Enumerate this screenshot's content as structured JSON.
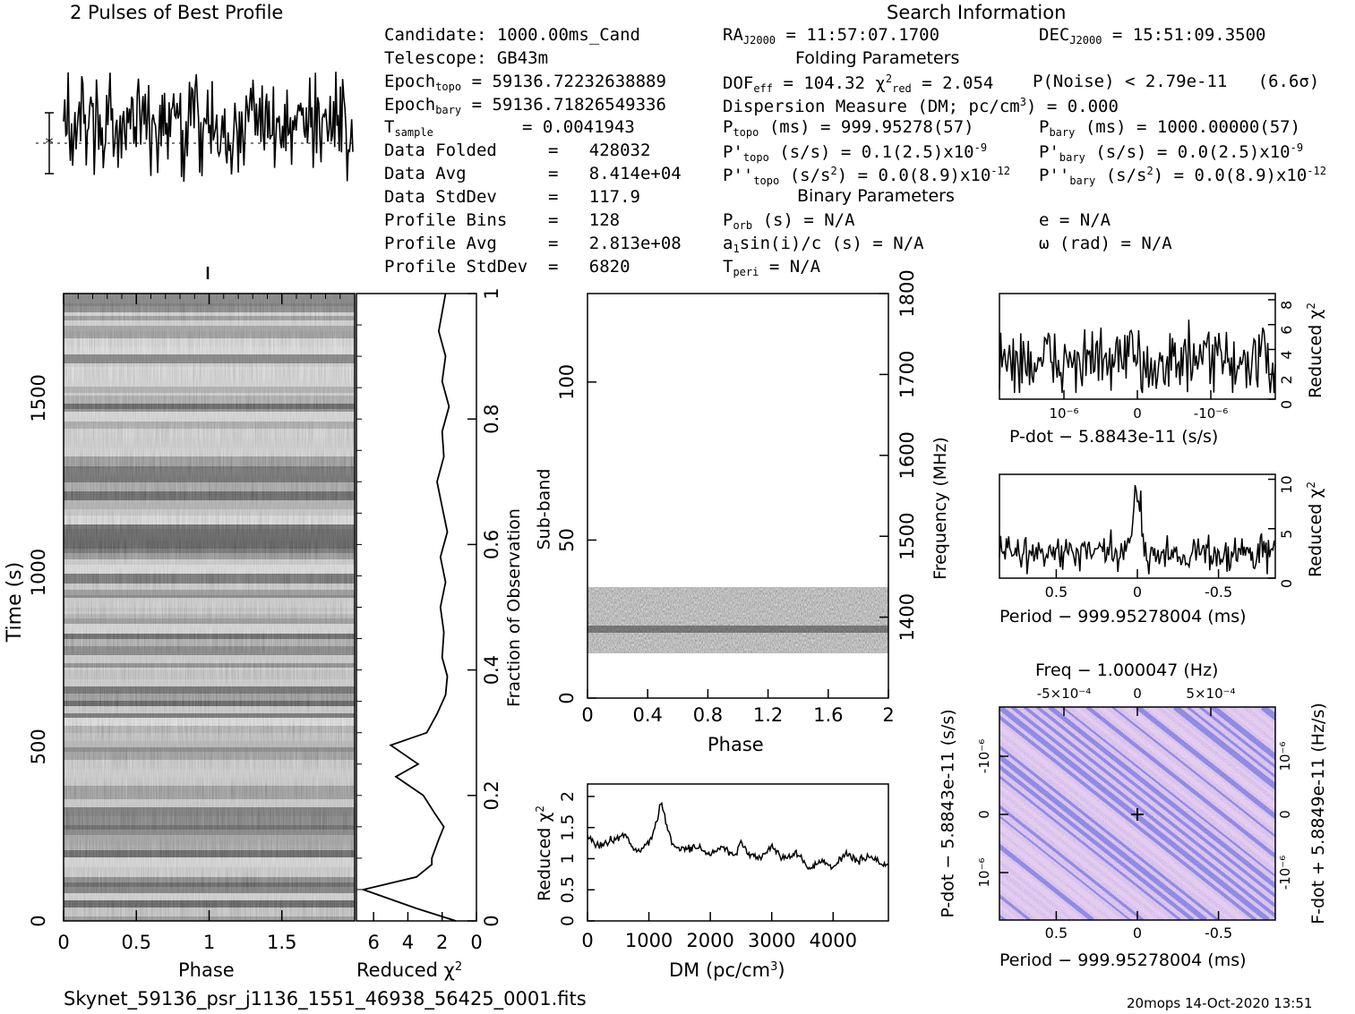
{
  "header": {
    "profile_title": "2 Pulses of Best Profile",
    "search_title": "Search Information",
    "folding_title": "Folding Parameters",
    "binary_title": "Binary Parameters"
  },
  "candidate_info": {
    "candidate": "Candidate:  1000.00ms_Cand",
    "telescope": "Telescope:  GB43m",
    "epoch_topo": "= 59136.72232638889",
    "epoch_bary": "= 59136.71826549336",
    "tsample": "=   0.0041943",
    "data_folded": "Data Folded     =   428032",
    "data_avg": "Data Avg        =   8.414e+04",
    "data_stddev": "Data StdDev     =   117.9",
    "profile_bins": "Profile Bins    =   128",
    "profile_avg": "Profile Avg     =   2.813e+08",
    "profile_stddev": "Profile StdDev  =   6820"
  },
  "search_info": {
    "ra": "= 11:57:07.1700",
    "dec": "= 15:51:09.3500",
    "dof": "= 104.32",
    "chi2red": "= 2.054",
    "pnoise": "P(Noise) < 2.79e-11   (6.6σ)",
    "dm": "Dispersion Measure (DM; pc/cm",
    "dm_value": ") = 0.000",
    "ptopo": "(ms) =  999.95278(57)",
    "pbary": "(ms) =  1000.00000(57)",
    "pdot_topo": "(s/s) =  0.1(2.5)x10",
    "pdot_bary": "(s/s) = 0.0(2.5)x10",
    "pddot_topo": "(s/s",
    "pddot_topo_val": ") = 0.0(8.9)x10",
    "pddot_bary_val": ") = 0.0(8.9)x10",
    "exp9": "-9",
    "exp12": "-12",
    "porb": "(s) = N/A",
    "a1sini": "sin(i)/c (s) = N/A",
    "tperi": "= N/A",
    "e": "e = N/A",
    "omega": "ω (rad) = N/A"
  },
  "axes": {
    "time_label": "Time (s)",
    "phase_label": "Phase",
    "redchi_label": "Reduced χ",
    "fraction_label": "Fraction of Observation",
    "subband_label": "Sub-band",
    "frequency_label": "Frequency (MHz)",
    "dm_label": "DM (pc/cm",
    "pdot_label": "P-dot − 5.8843e-11 (s/s)",
    "period_label": "Period − 999.95278004 (ms)",
    "freq_label": "Freq − 1.000047 (Hz)",
    "fdot_label": "F-dot + 5.8849e-11 (Hz/s)"
  },
  "footer": {
    "filename": "Skynet_59136_psr_j1136_1551_46938_56425_0001.fits",
    "stamp": "20mops 14-Oct-2020 13:51"
  },
  "chart_data": [
    {
      "type": "line",
      "title": "2 Pulses of Best Profile",
      "x_range": [
        0,
        2
      ],
      "note_values": "128 profile bins repeated twice, noisy profile"
    },
    {
      "type": "heatmap",
      "name": "time-phase",
      "xlabel": "Phase",
      "ylabel": "Time (s)",
      "xlim": [
        0,
        2
      ],
      "ylim": [
        0,
        1800
      ],
      "x_ticks": [
        0,
        0.5,
        1,
        1.5
      ],
      "y_ticks": [
        0,
        500,
        1000,
        1500
      ]
    },
    {
      "type": "line",
      "name": "reduced-chi2-vs-time",
      "xlabel": "Reduced χ2",
      "ylabel": "Fraction of Observation",
      "xlim": [
        7,
        0
      ],
      "ylim": [
        0,
        1
      ],
      "x_ticks": [
        6,
        4,
        2,
        0
      ],
      "y_ticks": [
        0,
        0.2,
        0.4,
        0.6,
        0.8,
        1
      ],
      "fraction": [
        0,
        0.02,
        0.05,
        0.07,
        0.09,
        0.1,
        0.13,
        0.15,
        0.17,
        0.2,
        0.23,
        0.25,
        0.28,
        0.3,
        0.33,
        0.36,
        0.39,
        0.42,
        0.46,
        0.5,
        0.54,
        0.58,
        0.62,
        0.66,
        0.7,
        0.74,
        0.78,
        0.82,
        0.86,
        0.9,
        0.94,
        0.97,
        1.0
      ],
      "redchi": [
        1.2,
        3.5,
        6.6,
        3.5,
        2.6,
        2.6,
        2.2,
        1.9,
        2.4,
        3.1,
        4.7,
        3.4,
        5.0,
        2.9,
        2.3,
        1.8,
        1.7,
        2.0,
        1.9,
        2.1,
        1.8,
        2.1,
        1.7,
        2.0,
        2.3,
        1.9,
        2.0,
        1.6,
        2.0,
        1.8,
        2.2,
        2.0,
        1.8
      ]
    },
    {
      "type": "heatmap",
      "name": "subband-phase",
      "xlabel": "Phase",
      "ylabel": "Sub-band",
      "y2label": "Frequency (MHz)",
      "xlim": [
        0,
        2
      ],
      "ylim": [
        0,
        128
      ],
      "y2lim": [
        1300,
        1800
      ],
      "x_ticks": [
        0,
        0.4,
        0.8,
        1.2,
        1.6,
        2
      ],
      "y_ticks": [
        0,
        50,
        100
      ],
      "y2_ticks": [
        1400,
        1500,
        1600,
        1700,
        1800
      ],
      "occupied_subbands": [
        14,
        35
      ]
    },
    {
      "type": "line",
      "name": "reduced-chi2-vs-dm",
      "xlabel": "DM (pc/cm3)",
      "ylabel": "Reduced χ2",
      "xlim": [
        0,
        4900
      ],
      "ylim": [
        0,
        2.2
      ],
      "x_ticks": [
        0,
        1000,
        2000,
        3000,
        4000
      ],
      "y_ticks": [
        0,
        0.5,
        1,
        1.5,
        2
      ],
      "x": [
        0,
        200,
        400,
        600,
        800,
        1000,
        1100,
        1200,
        1300,
        1400,
        1600,
        1800,
        2000,
        2200,
        2400,
        2500,
        2600,
        2800,
        3000,
        3200,
        3400,
        3600,
        3800,
        4000,
        4200,
        4400,
        4600,
        4800
      ],
      "y": [
        1.35,
        1.2,
        1.3,
        1.4,
        1.1,
        1.25,
        1.5,
        1.9,
        1.5,
        1.2,
        1.15,
        1.2,
        1.05,
        1.2,
        1.0,
        1.3,
        1.1,
        1.0,
        1.2,
        1.0,
        1.1,
        0.85,
        0.95,
        0.85,
        1.1,
        0.95,
        1.05,
        0.9
      ]
    },
    {
      "type": "line",
      "name": "pdot-search",
      "xlabel": "P-dot − 5.8843e-11 (s/s)",
      "ylabel": "Reduced χ2",
      "ylim": [
        0,
        8.5
      ],
      "y_ticks": [
        0,
        2,
        4,
        6,
        8
      ],
      "x_tick_labels": [
        "10-6",
        "0",
        "-10-6"
      ]
    },
    {
      "type": "line",
      "name": "period-search",
      "xlabel": "Period − 999.95278004 (ms)",
      "ylabel": "Reduced χ2",
      "xlim": [
        0.85,
        -0.85
      ],
      "ylim": [
        0,
        10.5
      ],
      "x_ticks": [
        0.5,
        0,
        -0.5
      ],
      "y_ticks": [
        0,
        5,
        10
      ],
      "peak_x": 0,
      "peak_y": 10
    },
    {
      "type": "heatmap",
      "name": "period-pdot-plane",
      "xlabel": "Period − 999.95278004 (ms)",
      "ylabel": "P-dot − 5.8843e-11 (s/s)",
      "x2label": "Freq − 1.000047 (Hz)",
      "y2label": "F-dot + 5.8849e-11 (Hz/s)",
      "x_ticks": [
        0.5,
        0,
        -0.5
      ],
      "x2_tick_labels": [
        "-5x10-4",
        "0",
        "5x10-4"
      ],
      "y_tick_labels": [
        "-10-6",
        "0",
        "10-6"
      ],
      "best_point": [
        0,
        0
      ]
    }
  ],
  "colors": {
    "ink": "#000000",
    "plane_base": "#b8a8e8",
    "plane_dark": "#3848d8",
    "plane_light": "#f0d8f0"
  }
}
